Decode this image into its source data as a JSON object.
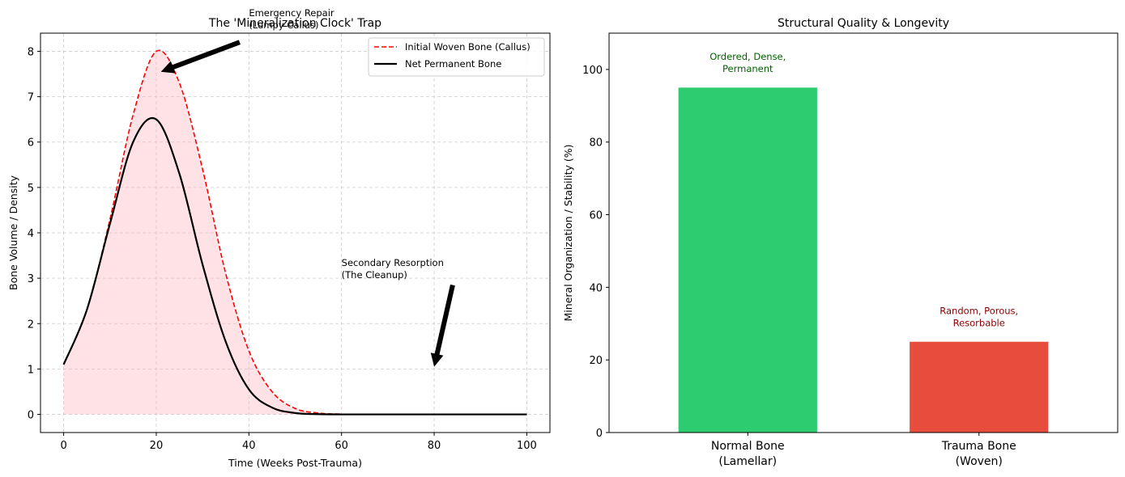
{
  "chart_data": [
    {
      "type": "line",
      "title": "The 'Mineralization Clock' Trap",
      "xlabel": "Time (Weeks Post-Trauma)",
      "ylabel": "Bone Volume / Density",
      "xlim": [
        -5,
        105
      ],
      "ylim": [
        -0.4,
        8.4
      ],
      "xticks": [
        0,
        20,
        40,
        60,
        80,
        100
      ],
      "yticks": [
        0,
        1,
        2,
        3,
        4,
        5,
        6,
        7,
        8
      ],
      "grid": true,
      "legend_position": "top-right",
      "x": [
        0,
        5,
        10,
        15,
        20,
        25,
        30,
        35,
        40,
        45,
        50,
        55,
        60,
        65,
        70,
        75,
        80,
        85,
        90,
        95,
        100
      ],
      "series": [
        {
          "name": "Initial Woven Bone (Callus)",
          "color": "#ff0000",
          "style": "dashed",
          "values": [
            1.1,
            2.3,
            4.3,
            6.6,
            8.0,
            7.3,
            5.4,
            3.1,
            1.4,
            0.5,
            0.13,
            0.03,
            0.005,
            0,
            0,
            0,
            0,
            0,
            0,
            0,
            0
          ]
        },
        {
          "name": "Net Permanent Bone",
          "color": "#000000",
          "style": "solid",
          "values": [
            1.1,
            2.3,
            4.2,
            6.0,
            6.5,
            5.3,
            3.3,
            1.6,
            0.55,
            0.15,
            0.03,
            0.005,
            0,
            0,
            0,
            0,
            0,
            0,
            0,
            0,
            0
          ]
        }
      ],
      "fill_color": "#ffb6c1",
      "annotations": [
        {
          "text": "Emergency Repair\n(Lumpy Callus)",
          "text_at": [
            40,
            8.6
          ],
          "arrow_from": [
            38,
            8.2
          ],
          "arrow_to": [
            21,
            7.55
          ]
        },
        {
          "text": "Secondary Resorption\n(The Cleanup)",
          "text_at": [
            60,
            3.0
          ],
          "arrow_from": [
            84,
            2.85
          ],
          "arrow_to": [
            80,
            1.05
          ]
        }
      ]
    },
    {
      "type": "bar",
      "title": "Structural Quality & Longevity",
      "xlabel": "",
      "ylabel": "Mineral Organization / Stability (%)",
      "ylim": [
        0,
        110
      ],
      "yticks": [
        0,
        20,
        40,
        60,
        80,
        100
      ],
      "grid": false,
      "categories": [
        "Normal Bone\n(Lamellar)",
        "Trauma Bone\n(Woven)"
      ],
      "values": [
        95,
        25
      ],
      "colors": [
        "#2ecc71",
        "#e74c3c"
      ],
      "bar_labels": [
        "Ordered, Dense,\nPermanent",
        "Random, Porous,\nResorbable"
      ],
      "bar_label_colors": [
        "#006400",
        "#8b0000"
      ]
    }
  ]
}
